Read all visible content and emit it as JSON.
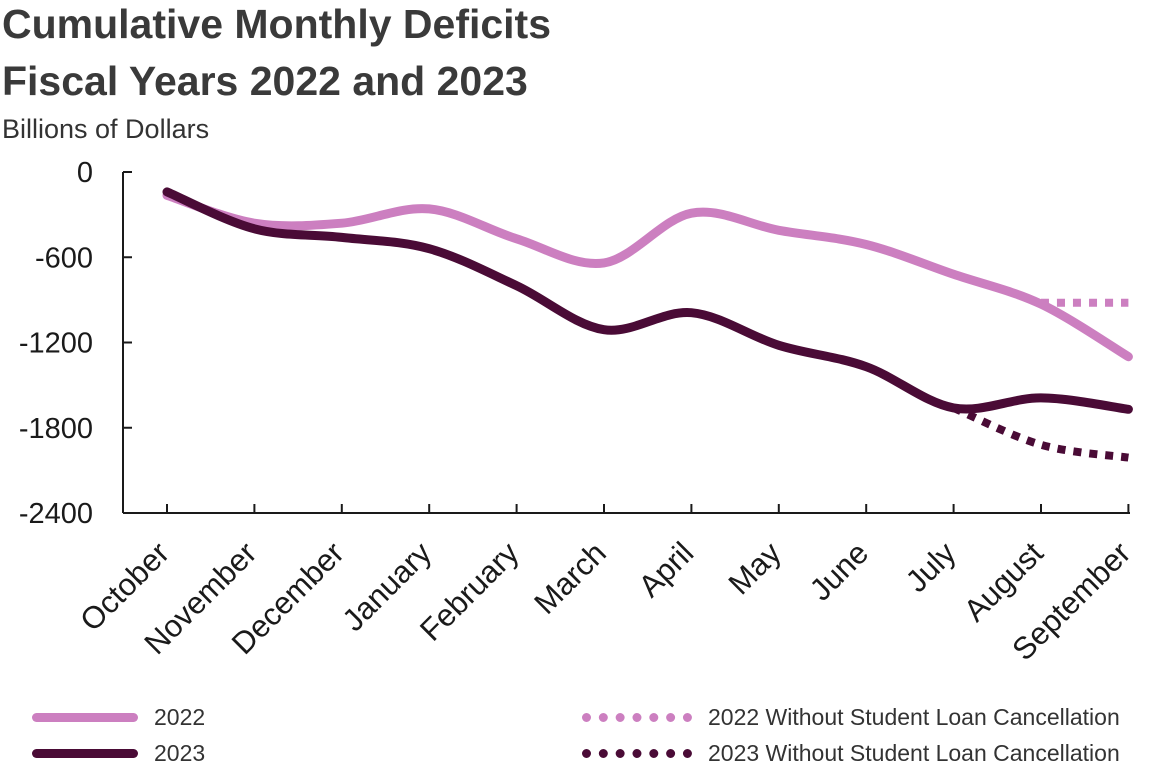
{
  "chart_data": {
    "type": "line",
    "title_line1": "Cumulative Monthly Deficits",
    "title_line2": "Fiscal Years 2022 and 2023",
    "ylabel": "Billions of Dollars",
    "xlabel": "",
    "ylim": [
      -2400,
      0
    ],
    "yticks": [
      0,
      -600,
      -1200,
      -1800,
      -2400
    ],
    "ytick_labels": [
      "0",
      "-600",
      "-1200",
      "-1800",
      "-2400"
    ],
    "categories": [
      "October",
      "November",
      "December",
      "January",
      "February",
      "March",
      "April",
      "May",
      "June",
      "July",
      "August",
      "September"
    ],
    "series": [
      {
        "name": "2022",
        "style": "solid",
        "color": "#cc7fc0",
        "values": [
          -165,
          -360,
          -360,
          -260,
          -470,
          -640,
          -290,
          -410,
          -510,
          -720,
          -930,
          -1300
        ]
      },
      {
        "name": "2023",
        "style": "solid",
        "color": "#4a0b36",
        "values": [
          -140,
          -400,
          -460,
          -540,
          -800,
          -1110,
          -990,
          -1220,
          -1370,
          -1660,
          -1590,
          -1670
        ]
      },
      {
        "name": "2022 Without Student Loan Cancellation",
        "style": "dotted",
        "color": "#cc7fc0",
        "values": [
          null,
          null,
          null,
          null,
          null,
          null,
          null,
          null,
          null,
          null,
          -920,
          -920
        ]
      },
      {
        "name": "2023 Without Student Loan Cancellation",
        "style": "dotted",
        "color": "#4a0b36",
        "values": [
          null,
          null,
          null,
          null,
          null,
          null,
          null,
          null,
          null,
          -1660,
          -1920,
          -2010
        ]
      }
    ],
    "legend_position": "bottom"
  }
}
